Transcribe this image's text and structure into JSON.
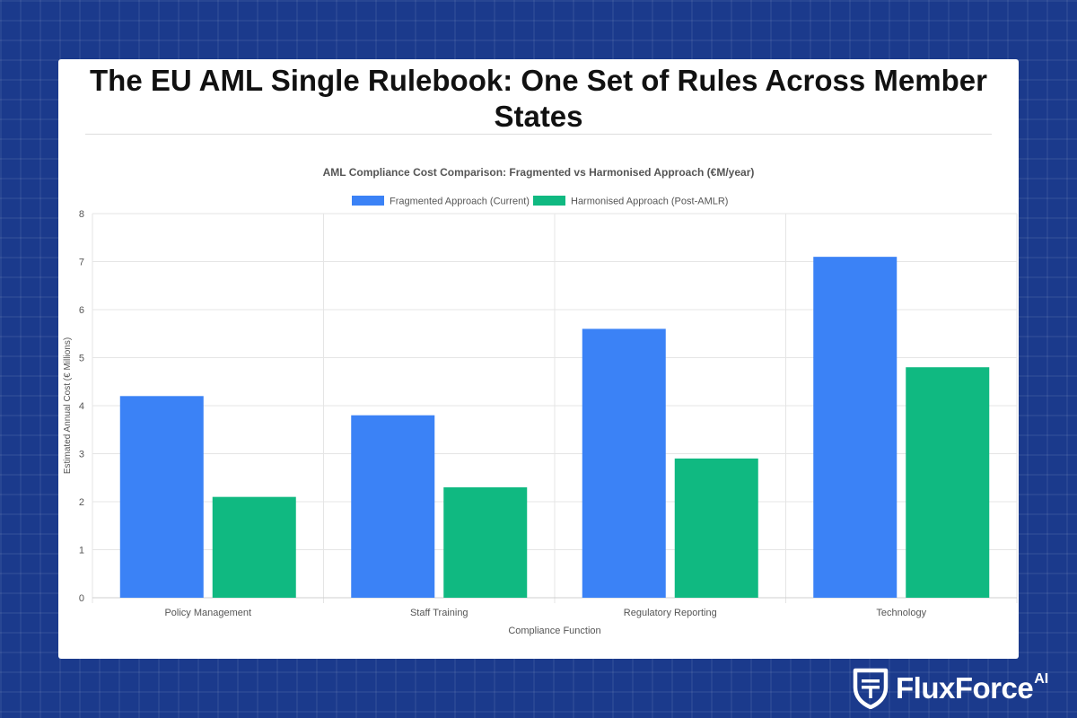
{
  "page_title": "The EU AML Single Rulebook: One Set of Rules Across Member States",
  "brand": {
    "name": "FluxForce",
    "suffix": "AI",
    "logo_icon": "shield-logo-icon"
  },
  "colors": {
    "fragmented": "#3b82f6",
    "harmonised": "#10b981",
    "background": "#1b3a8c"
  },
  "chart_data": {
    "type": "bar",
    "title": "AML Compliance Cost Comparison: Fragmented vs Harmonised Approach (€M/year)",
    "xlabel": "Compliance Function",
    "ylabel": "Estimated Annual Cost (€ Millions)",
    "categories": [
      "Policy Management",
      "Staff Training",
      "Regulatory Reporting",
      "Technology"
    ],
    "series": [
      {
        "name": "Fragmented Approach (Current)",
        "values": [
          4.2,
          3.8,
          5.6,
          7.1
        ],
        "color": "#3b82f6"
      },
      {
        "name": "Harmonised Approach (Post-AMLR)",
        "values": [
          2.1,
          2.3,
          2.9,
          4.8
        ],
        "color": "#10b981"
      }
    ],
    "ylim": [
      0,
      8
    ],
    "yticks": [
      0,
      1,
      2,
      3,
      4,
      5,
      6,
      7,
      8
    ],
    "grid": true,
    "legend_position": "top-center"
  }
}
